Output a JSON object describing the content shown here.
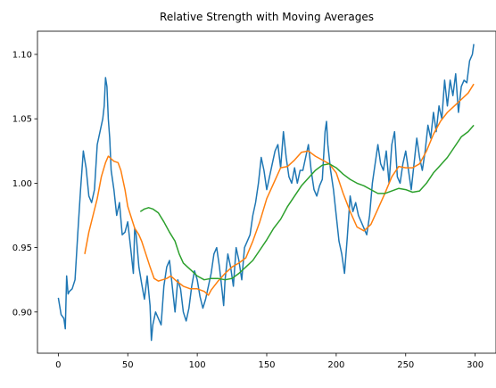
{
  "chart_data": {
    "type": "line",
    "title": "Relative Strength with Moving Averages",
    "xlabel": "",
    "ylabel": "",
    "xlim": [
      -15,
      315
    ],
    "ylim": [
      0.868,
      1.118
    ],
    "x_ticks": [
      0,
      50,
      100,
      150,
      200,
      250,
      300
    ],
    "y_ticks": [
      0.9,
      0.95,
      1.0,
      1.05,
      1.1
    ],
    "y_tick_labels": [
      "0.90",
      "0.95",
      "1.00",
      "1.05",
      "1.10"
    ],
    "grid": false,
    "legend": "none",
    "series": [
      {
        "color": "#1f77b4",
        "points": [
          [
            0,
            0.911
          ],
          [
            2,
            0.898
          ],
          [
            4,
            0.895
          ],
          [
            5,
            0.887
          ],
          [
            6,
            0.928
          ],
          [
            7,
            0.914
          ],
          [
            8,
            0.916
          ],
          [
            10,
            0.918
          ],
          [
            12,
            0.925
          ],
          [
            14,
            0.961
          ],
          [
            16,
            0.995
          ],
          [
            18,
            1.025
          ],
          [
            19,
            1.018
          ],
          [
            20,
            1.012
          ],
          [
            22,
            0.99
          ],
          [
            24,
            0.985
          ],
          [
            26,
            0.995
          ],
          [
            28,
            1.03
          ],
          [
            30,
            1.04
          ],
          [
            32,
            1.05
          ],
          [
            33,
            1.06
          ],
          [
            34,
            1.082
          ],
          [
            35,
            1.075
          ],
          [
            36,
            1.05
          ],
          [
            37,
            1.035
          ],
          [
            38,
            1.01
          ],
          [
            40,
            0.995
          ],
          [
            42,
            0.975
          ],
          [
            44,
            0.985
          ],
          [
            46,
            0.96
          ],
          [
            48,
            0.962
          ],
          [
            50,
            0.97
          ],
          [
            52,
            0.95
          ],
          [
            54,
            0.93
          ],
          [
            55,
            0.965
          ],
          [
            56,
            0.96
          ],
          [
            58,
            0.935
          ],
          [
            60,
            0.922
          ],
          [
            62,
            0.91
          ],
          [
            64,
            0.928
          ],
          [
            66,
            0.905
          ],
          [
            67,
            0.878
          ],
          [
            68,
            0.89
          ],
          [
            70,
            0.9
          ],
          [
            72,
            0.895
          ],
          [
            74,
            0.89
          ],
          [
            76,
            0.92
          ],
          [
            78,
            0.935
          ],
          [
            80,
            0.94
          ],
          [
            82,
            0.92
          ],
          [
            84,
            0.9
          ],
          [
            86,
            0.925
          ],
          [
            88,
            0.918
          ],
          [
            90,
            0.9
          ],
          [
            92,
            0.893
          ],
          [
            94,
            0.903
          ],
          [
            96,
            0.92
          ],
          [
            98,
            0.932
          ],
          [
            100,
            0.925
          ],
          [
            102,
            0.912
          ],
          [
            104,
            0.903
          ],
          [
            106,
            0.91
          ],
          [
            108,
            0.92
          ],
          [
            110,
            0.93
          ],
          [
            112,
            0.945
          ],
          [
            114,
            0.95
          ],
          [
            116,
            0.935
          ],
          [
            118,
            0.915
          ],
          [
            119,
            0.905
          ],
          [
            120,
            0.925
          ],
          [
            122,
            0.945
          ],
          [
            124,
            0.935
          ],
          [
            126,
            0.92
          ],
          [
            128,
            0.95
          ],
          [
            130,
            0.94
          ],
          [
            132,
            0.925
          ],
          [
            134,
            0.95
          ],
          [
            136,
            0.955
          ],
          [
            138,
            0.96
          ],
          [
            140,
            0.975
          ],
          [
            142,
            0.985
          ],
          [
            144,
            1.0
          ],
          [
            146,
            1.02
          ],
          [
            148,
            1.01
          ],
          [
            150,
            0.995
          ],
          [
            152,
            1.005
          ],
          [
            154,
            1.015
          ],
          [
            156,
            1.025
          ],
          [
            158,
            1.03
          ],
          [
            160,
            1.012
          ],
          [
            162,
            1.04
          ],
          [
            164,
            1.02
          ],
          [
            166,
            1.005
          ],
          [
            168,
            1.0
          ],
          [
            170,
            1.012
          ],
          [
            172,
            1.0
          ],
          [
            174,
            1.01
          ],
          [
            176,
            1.01
          ],
          [
            178,
            1.02
          ],
          [
            180,
            1.03
          ],
          [
            182,
            1.01
          ],
          [
            184,
            0.995
          ],
          [
            186,
            0.99
          ],
          [
            188,
            0.998
          ],
          [
            190,
            1.003
          ],
          [
            192,
            1.04
          ],
          [
            193,
            1.048
          ],
          [
            194,
            1.03
          ],
          [
            196,
            1.01
          ],
          [
            198,
            0.995
          ],
          [
            200,
            0.975
          ],
          [
            202,
            0.955
          ],
          [
            204,
            0.945
          ],
          [
            206,
            0.93
          ],
          [
            208,
            0.958
          ],
          [
            210,
            0.99
          ],
          [
            212,
            0.978
          ],
          [
            214,
            0.985
          ],
          [
            216,
            0.975
          ],
          [
            218,
            0.97
          ],
          [
            220,
            0.965
          ],
          [
            222,
            0.96
          ],
          [
            224,
            0.975
          ],
          [
            226,
            1.0
          ],
          [
            228,
            1.015
          ],
          [
            230,
            1.03
          ],
          [
            232,
            1.015
          ],
          [
            234,
            1.01
          ],
          [
            236,
            1.025
          ],
          [
            238,
            1.0
          ],
          [
            240,
            1.03
          ],
          [
            242,
            1.04
          ],
          [
            244,
            1.005
          ],
          [
            246,
            1.0
          ],
          [
            248,
            1.015
          ],
          [
            250,
            1.025
          ],
          [
            252,
            1.01
          ],
          [
            254,
            0.995
          ],
          [
            256,
            1.015
          ],
          [
            258,
            1.035
          ],
          [
            260,
            1.02
          ],
          [
            262,
            1.01
          ],
          [
            264,
            1.025
          ],
          [
            266,
            1.045
          ],
          [
            268,
            1.035
          ],
          [
            270,
            1.055
          ],
          [
            272,
            1.04
          ],
          [
            274,
            1.06
          ],
          [
            276,
            1.05
          ],
          [
            278,
            1.08
          ],
          [
            280,
            1.06
          ],
          [
            282,
            1.08
          ],
          [
            284,
            1.068
          ],
          [
            286,
            1.085
          ],
          [
            288,
            1.055
          ],
          [
            290,
            1.075
          ],
          [
            292,
            1.08
          ],
          [
            294,
            1.078
          ],
          [
            296,
            1.095
          ],
          [
            298,
            1.1
          ],
          [
            299,
            1.108
          ]
        ]
      },
      {
        "color": "#ff7f0e",
        "points": [
          [
            19,
            0.945
          ],
          [
            22,
            0.962
          ],
          [
            25,
            0.975
          ],
          [
            28,
            0.988
          ],
          [
            31,
            1.005
          ],
          [
            34,
            1.016
          ],
          [
            36,
            1.021
          ],
          [
            38,
            1.019
          ],
          [
            40,
            1.017
          ],
          [
            43,
            1.016
          ],
          [
            45,
            1.01
          ],
          [
            48,
            0.995
          ],
          [
            50,
            0.982
          ],
          [
            52,
            0.975
          ],
          [
            55,
            0.965
          ],
          [
            58,
            0.96
          ],
          [
            60,
            0.955
          ],
          [
            63,
            0.945
          ],
          [
            66,
            0.935
          ],
          [
            69,
            0.926
          ],
          [
            72,
            0.924
          ],
          [
            75,
            0.925
          ],
          [
            78,
            0.926
          ],
          [
            81,
            0.928
          ],
          [
            85,
            0.924
          ],
          [
            90,
            0.92
          ],
          [
            95,
            0.918
          ],
          [
            100,
            0.918
          ],
          [
            105,
            0.916
          ],
          [
            108,
            0.913
          ],
          [
            110,
            0.917
          ],
          [
            115,
            0.924
          ],
          [
            120,
            0.93
          ],
          [
            125,
            0.935
          ],
          [
            130,
            0.938
          ],
          [
            135,
            0.942
          ],
          [
            140,
            0.955
          ],
          [
            145,
            0.97
          ],
          [
            150,
            0.988
          ],
          [
            155,
            1.0
          ],
          [
            160,
            1.012
          ],
          [
            165,
            1.013
          ],
          [
            170,
            1.018
          ],
          [
            175,
            1.024
          ],
          [
            180,
            1.025
          ],
          [
            185,
            1.021
          ],
          [
            190,
            1.018
          ],
          [
            195,
            1.015
          ],
          [
            200,
            1.008
          ],
          [
            205,
            0.992
          ],
          [
            210,
            0.978
          ],
          [
            215,
            0.966
          ],
          [
            220,
            0.963
          ],
          [
            225,
            0.968
          ],
          [
            230,
            0.98
          ],
          [
            235,
            0.992
          ],
          [
            240,
            1.005
          ],
          [
            245,
            1.013
          ],
          [
            250,
            1.012
          ],
          [
            255,
            1.012
          ],
          [
            260,
            1.015
          ],
          [
            265,
            1.025
          ],
          [
            270,
            1.038
          ],
          [
            275,
            1.048
          ],
          [
            280,
            1.055
          ],
          [
            285,
            1.06
          ],
          [
            290,
            1.065
          ],
          [
            295,
            1.07
          ],
          [
            299,
            1.077
          ]
        ]
      },
      {
        "color": "#2ca02c",
        "points": [
          [
            59,
            0.978
          ],
          [
            62,
            0.98
          ],
          [
            65,
            0.981
          ],
          [
            68,
            0.98
          ],
          [
            72,
            0.977
          ],
          [
            76,
            0.97
          ],
          [
            80,
            0.962
          ],
          [
            84,
            0.955
          ],
          [
            87,
            0.945
          ],
          [
            90,
            0.938
          ],
          [
            93,
            0.935
          ],
          [
            96,
            0.932
          ],
          [
            100,
            0.928
          ],
          [
            105,
            0.925
          ],
          [
            110,
            0.926
          ],
          [
            115,
            0.926
          ],
          [
            120,
            0.925
          ],
          [
            125,
            0.926
          ],
          [
            130,
            0.93
          ],
          [
            135,
            0.935
          ],
          [
            140,
            0.94
          ],
          [
            145,
            0.948
          ],
          [
            150,
            0.956
          ],
          [
            155,
            0.965
          ],
          [
            160,
            0.972
          ],
          [
            165,
            0.982
          ],
          [
            170,
            0.99
          ],
          [
            175,
            0.998
          ],
          [
            180,
            1.004
          ],
          [
            185,
            1.01
          ],
          [
            190,
            1.014
          ],
          [
            195,
            1.015
          ],
          [
            200,
            1.012
          ],
          [
            205,
            1.007
          ],
          [
            210,
            1.003
          ],
          [
            215,
            1.0
          ],
          [
            220,
            0.998
          ],
          [
            225,
            0.995
          ],
          [
            230,
            0.992
          ],
          [
            235,
            0.992
          ],
          [
            240,
            0.994
          ],
          [
            245,
            0.996
          ],
          [
            250,
            0.995
          ],
          [
            255,
            0.993
          ],
          [
            260,
            0.994
          ],
          [
            265,
            1.0
          ],
          [
            270,
            1.008
          ],
          [
            275,
            1.014
          ],
          [
            280,
            1.02
          ],
          [
            285,
            1.028
          ],
          [
            290,
            1.036
          ],
          [
            295,
            1.04
          ],
          [
            299,
            1.045
          ]
        ]
      }
    ]
  }
}
